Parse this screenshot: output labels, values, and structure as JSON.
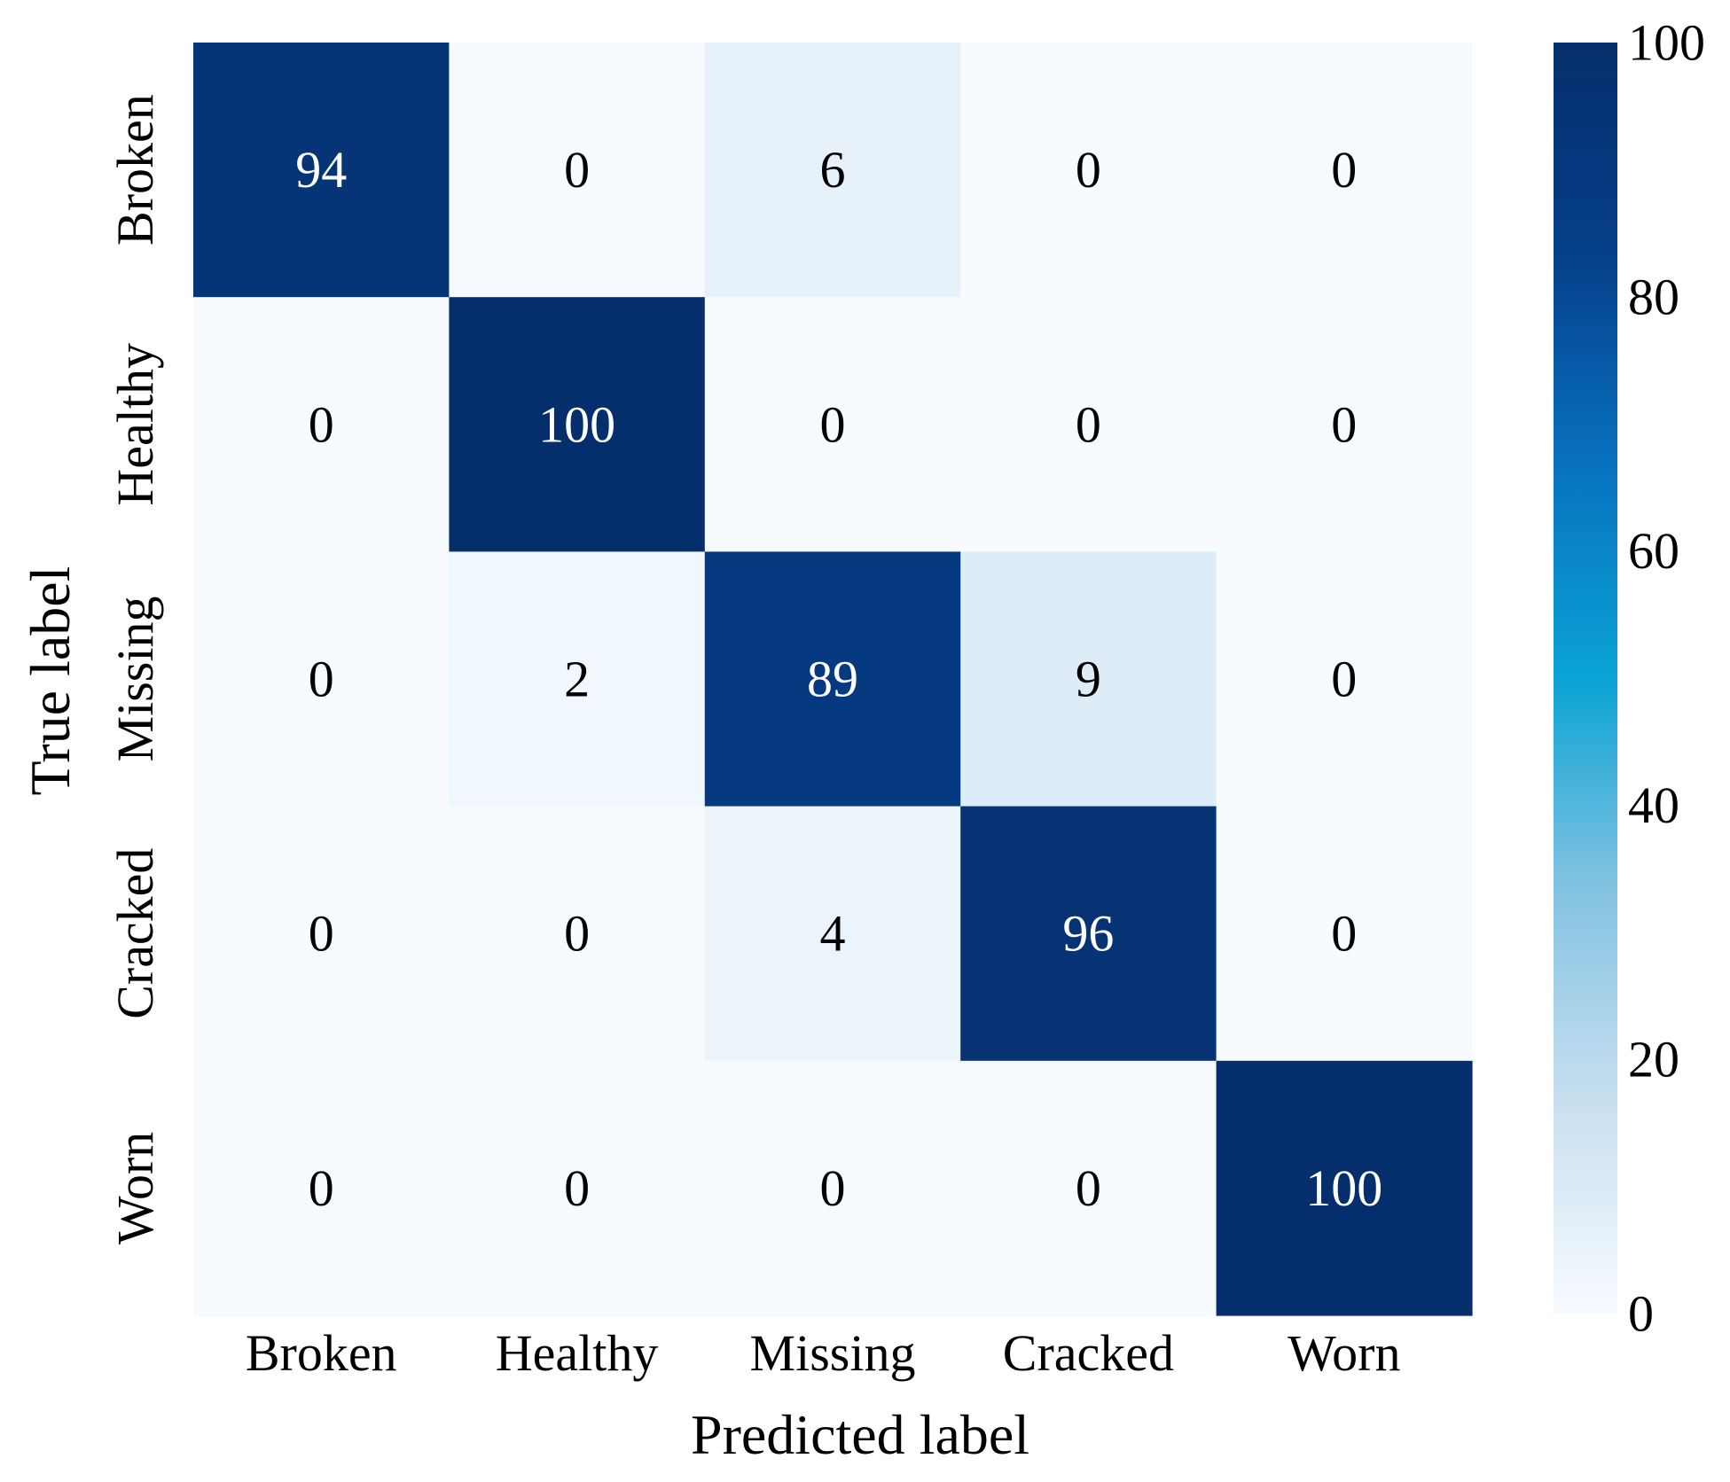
{
  "chart_data": {
    "type": "heatmap",
    "title": "",
    "xlabel": "Predicted label",
    "ylabel": "True label",
    "x_categories": [
      "Broken",
      "Healthy",
      "Missing",
      "Cracked",
      "Worn"
    ],
    "y_categories": [
      "Broken",
      "Healthy",
      "Missing",
      "Cracked",
      "Worn"
    ],
    "values": [
      [
        94,
        0,
        6,
        0,
        0
      ],
      [
        0,
        100,
        0,
        0,
        0
      ],
      [
        0,
        2,
        89,
        9,
        0
      ],
      [
        0,
        0,
        4,
        96,
        0
      ],
      [
        0,
        0,
        0,
        0,
        100
      ]
    ],
    "colorscale": "Blues",
    "colorbar": {
      "range": [
        0,
        100
      ],
      "ticks": [
        0,
        20,
        40,
        60,
        80,
        100
      ],
      "tick_labels": [
        "0",
        "20",
        "40",
        "60",
        "80",
        "100"
      ],
      "colors": [
        "#f7fbff",
        "#deebf7",
        "#c6dbef",
        "#9ecae1",
        "#6baed6",
        "#4292c6",
        "#2171b5",
        "#08519c",
        "#08306b"
      ],
      "display_colors": [
        "#f7fbff",
        "#c8dff0",
        "#84c3e2",
        "#0aa3d4",
        "#0872c0",
        "#053f8a",
        "#052f6c"
      ]
    }
  }
}
